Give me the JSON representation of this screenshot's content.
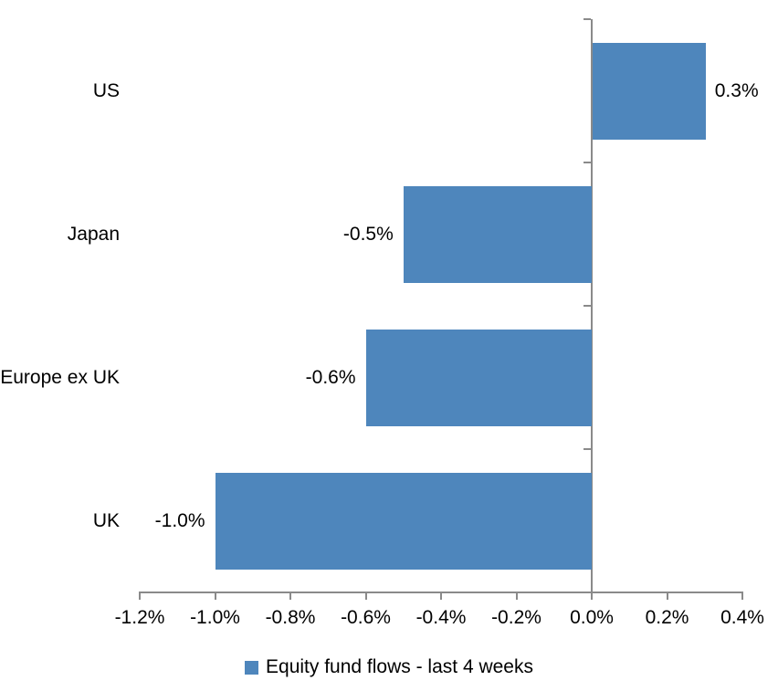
{
  "chart_data": {
    "type": "bar",
    "orientation": "horizontal",
    "title": "",
    "categories": [
      "US",
      "Japan",
      "Europe ex UK",
      "UK"
    ],
    "values": [
      0.3,
      -0.5,
      -0.6,
      -1.0
    ],
    "data_labels": [
      "0.3%",
      "-0.5%",
      "-0.6%",
      "-1.0%"
    ],
    "series": [
      {
        "name": "Equity fund flows - last 4 weeks",
        "values": [
          0.3,
          -0.5,
          -0.6,
          -1.0
        ]
      }
    ],
    "legend": {
      "label": "Equity fund flows - last 4 weeks",
      "position": "bottom"
    },
    "x_axis": {
      "tick_labels": [
        "-1.2%",
        "-1.0%",
        "-0.8%",
        "-0.6%",
        "-0.4%",
        "-0.2%",
        "0.0%",
        "0.2%",
        "0.4%"
      ],
      "min": -1.2,
      "max": 0.4,
      "step": 0.2,
      "unit": "%"
    },
    "grid": false,
    "colors": {
      "bar": "#4E86BC",
      "axis": "#8A8A8A",
      "text": "#000000",
      "background": "#FFFFFF"
    }
  }
}
